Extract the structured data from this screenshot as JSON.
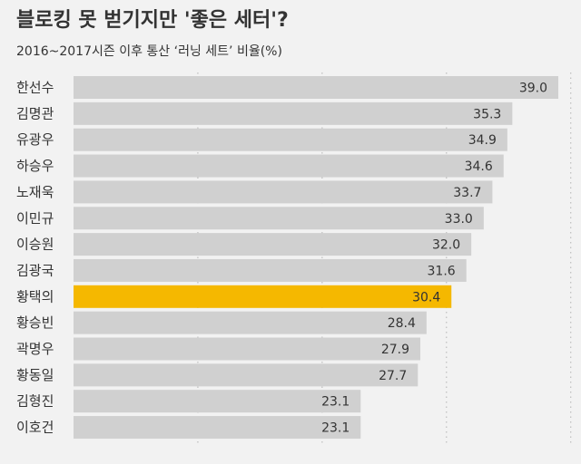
{
  "header": {
    "title": "블로킹 못 벋기지만 '좋은 세터'?",
    "subtitle": "2016~2017시즌 이후 통산 ‘러닝 세트’ 비율(%)"
  },
  "colors": {
    "background": "#f2f2f2",
    "bar": "#d0d0d0",
    "highlight": "#f5b800",
    "text": "#333333",
    "grid": "#bdbdbd"
  },
  "chart_data": {
    "type": "bar",
    "orientation": "horizontal",
    "title": "블로킹 못 벋기지만 '좋은 세터'?",
    "subtitle": "2016~2017시즌 이후 통산 ‘러닝 세트’ 비율(%)",
    "categories": [
      "한선수",
      "김명관",
      "유광우",
      "하승우",
      "노재욱",
      "이민규",
      "이승원",
      "김광국",
      "황택의",
      "황승빈",
      "곽명우",
      "황동일",
      "김형진",
      "이호건"
    ],
    "values": [
      39.0,
      35.3,
      34.9,
      34.6,
      33.7,
      33.0,
      32.0,
      31.6,
      30.4,
      28.4,
      27.9,
      27.7,
      23.1,
      23.1
    ],
    "value_labels": [
      "39.0",
      "35.3",
      "34.9",
      "34.6",
      "33.7",
      "33.0",
      "32.0",
      "31.6",
      "30.4",
      "28.4",
      "27.9",
      "27.7",
      "23.1",
      "23.1"
    ],
    "highlight": "황택의",
    "xlim": [
      0,
      40
    ],
    "grid": "vertical dotted",
    "xlabel": "",
    "ylabel": ""
  }
}
